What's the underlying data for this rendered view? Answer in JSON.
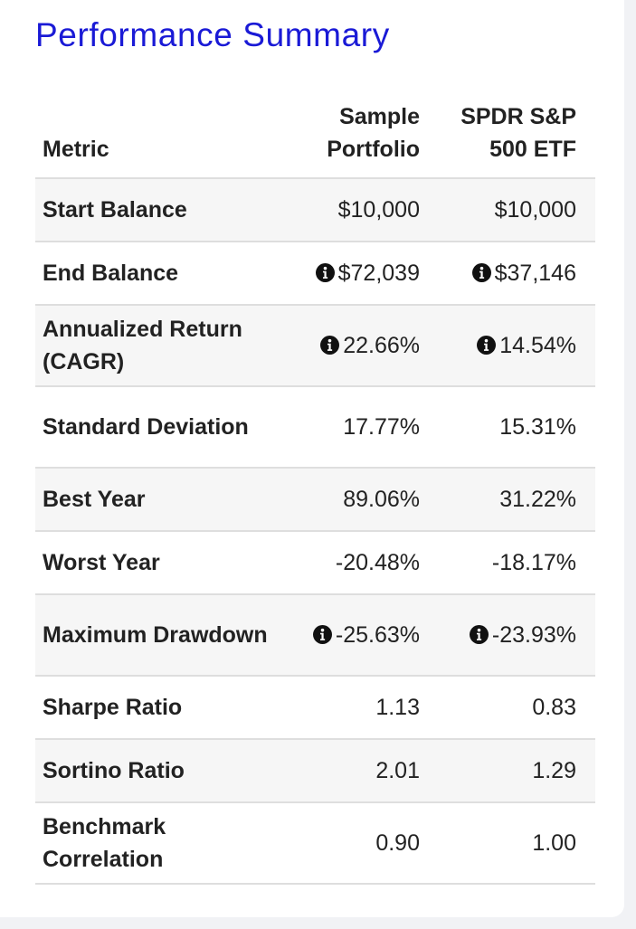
{
  "title": "Performance Summary",
  "table": {
    "headers": {
      "metric": "Metric",
      "portfolio": "Sample\nPortfolio",
      "benchmark": "SPDR S&P\n500 ETF"
    },
    "rows": [
      {
        "label": "Start Balance",
        "portfolio": "$10,000",
        "benchmark": "$10,000",
        "info": false
      },
      {
        "label": "End Balance",
        "portfolio": "$72,039",
        "benchmark": "$37,146",
        "info": true
      },
      {
        "label": "Annualized Return (CAGR)",
        "portfolio": "22.66%",
        "benchmark": "14.54%",
        "info": true
      },
      {
        "label": "Standard Deviation",
        "portfolio": "17.77%",
        "benchmark": "15.31%",
        "info": false
      },
      {
        "label": "Best Year",
        "portfolio": "89.06%",
        "benchmark": "31.22%",
        "info": false
      },
      {
        "label": "Worst Year",
        "portfolio": "-20.48%",
        "benchmark": "-18.17%",
        "info": false
      },
      {
        "label": "Maximum Drawdown",
        "portfolio": "-25.63%",
        "benchmark": "-23.93%",
        "info": true
      },
      {
        "label": "Sharpe Ratio",
        "portfolio": "1.13",
        "benchmark": "0.83",
        "info": false
      },
      {
        "label": "Sortino Ratio",
        "portfolio": "2.01",
        "benchmark": "1.29",
        "info": false
      },
      {
        "label": "Benchmark Correlation",
        "portfolio": "0.90",
        "benchmark": "1.00",
        "info": false
      }
    ]
  },
  "colors": {
    "title": "#1a1ad6",
    "text": "#222222",
    "row_shade": "#f6f6f6",
    "divider": "#dedede",
    "icon": "#111111"
  },
  "icons": {
    "info": "info-circle-icon"
  }
}
